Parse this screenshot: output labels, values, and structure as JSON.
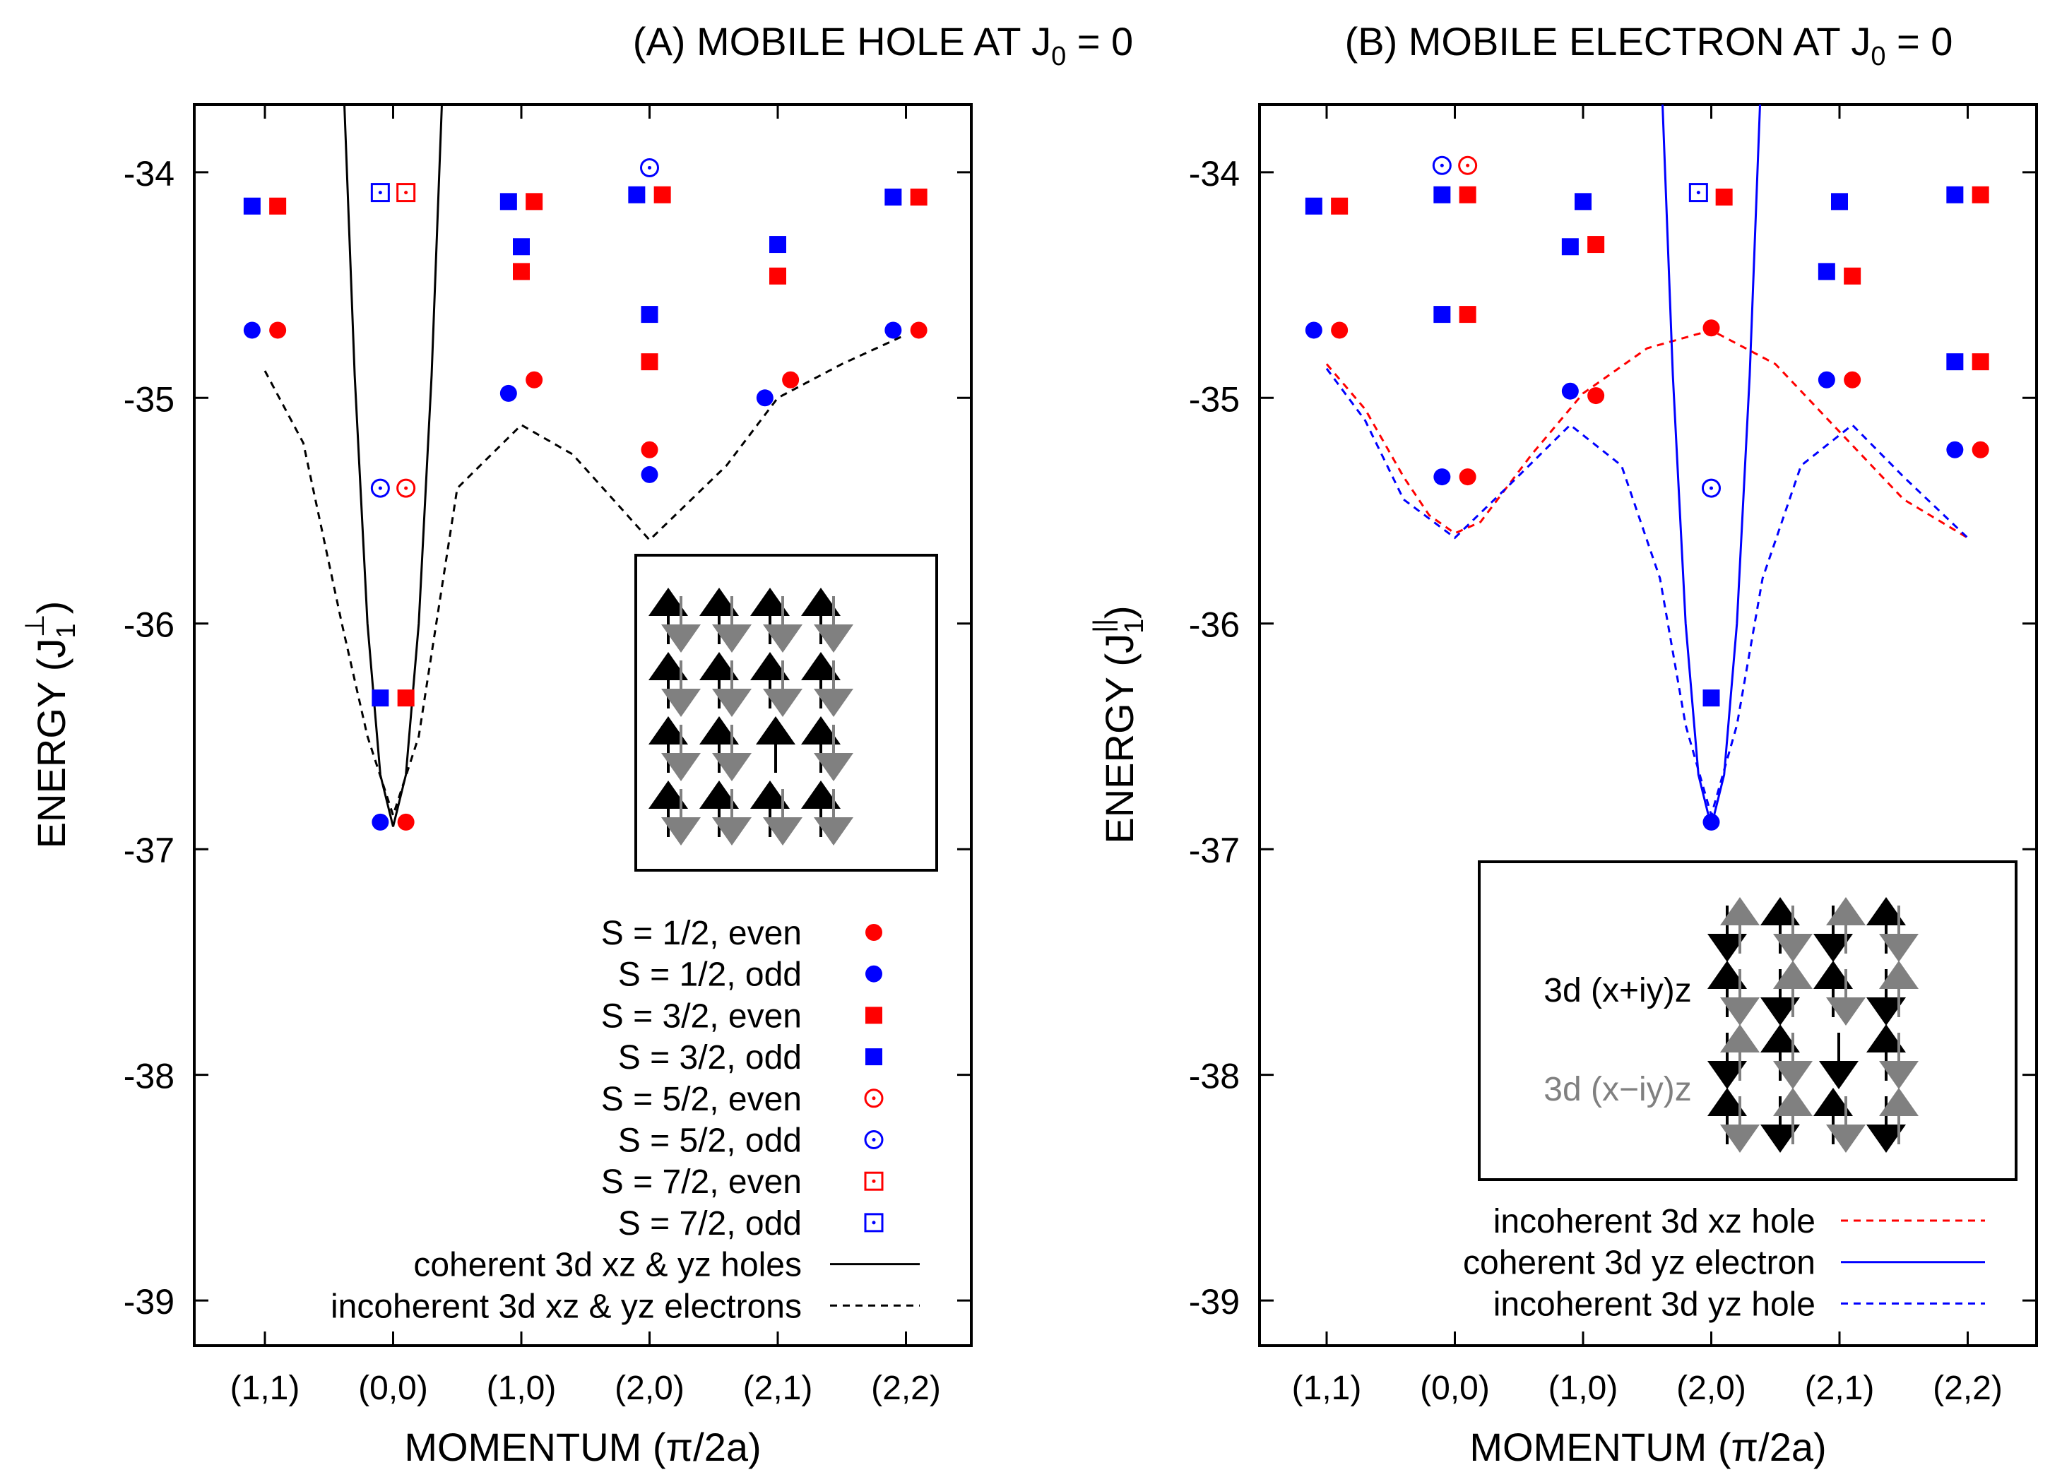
{
  "colors": {
    "red": "#ff0000",
    "blue": "#0000ff",
    "black": "#000000",
    "gray": "#808080"
  },
  "chart_data": [
    {
      "type": "scatter",
      "title": "(A) MOBILE HOLE AT J",
      "title_sub": "0",
      "title_tail": " = 0",
      "ylabel_main": "ENERGY (J",
      "ylabel_sub": "1",
      "ylabel_sup": "⊥",
      "ylabel_close": ")",
      "xlabel": "MOMENTUM (π/2a)",
      "categories": [
        "(1,1)",
        "(0,0)",
        "(1,0)",
        "(2,0)",
        "(2,1)",
        "(2,2)"
      ],
      "ylim": [
        -39.2,
        -33.7
      ],
      "yticks": [
        "-34",
        "-35",
        "-36",
        "-37",
        "-38",
        "-39"
      ],
      "series": [
        {
          "name": "S = 1/2, even",
          "marker": "circle",
          "color": "red",
          "points": [
            [
              0.1,
              -34.7
            ],
            [
              1.1,
              -36.88
            ],
            [
              2.1,
              -34.92
            ],
            [
              3.0,
              -35.23
            ],
            [
              4.1,
              -34.92
            ],
            [
              5.1,
              -34.7
            ]
          ]
        },
        {
          "name": "S = 1/2, odd",
          "marker": "circle",
          "color": "blue",
          "points": [
            [
              -0.1,
              -34.7
            ],
            [
              0.9,
              -36.88
            ],
            [
              1.9,
              -34.98
            ],
            [
              3.0,
              -35.34
            ],
            [
              3.9,
              -35.0
            ],
            [
              4.9,
              -34.7
            ]
          ]
        },
        {
          "name": "S = 3/2, even",
          "marker": "square",
          "color": "red",
          "points": [
            [
              0.1,
              -34.15
            ],
            [
              1.1,
              -36.33
            ],
            [
              2.1,
              -34.13
            ],
            [
              2.0,
              -34.44
            ],
            [
              3.1,
              -34.1
            ],
            [
              3.0,
              -34.84
            ],
            [
              4.0,
              -34.46
            ],
            [
              5.1,
              -34.11
            ]
          ]
        },
        {
          "name": "S = 3/2, odd",
          "marker": "square",
          "color": "blue",
          "points": [
            [
              -0.1,
              -34.15
            ],
            [
              0.9,
              -36.33
            ],
            [
              1.9,
              -34.13
            ],
            [
              2.0,
              -34.33
            ],
            [
              2.9,
              -34.1
            ],
            [
              3.0,
              -34.63
            ],
            [
              4.0,
              -34.32
            ],
            [
              4.9,
              -34.11
            ]
          ]
        },
        {
          "name": "S = 5/2, even",
          "marker": "circle-dot",
          "color": "red",
          "points": [
            [
              1.1,
              -35.4
            ]
          ]
        },
        {
          "name": "S = 5/2, odd",
          "marker": "circle-dot",
          "color": "blue",
          "points": [
            [
              0.9,
              -35.4
            ],
            [
              3.0,
              -33.98
            ]
          ]
        },
        {
          "name": "S = 7/2, even",
          "marker": "square-dot",
          "color": "red",
          "points": [
            [
              1.1,
              -34.09
            ]
          ]
        },
        {
          "name": "S = 7/2, odd",
          "marker": "square-dot",
          "color": "blue",
          "points": [
            [
              0.9,
              -34.09
            ]
          ]
        }
      ],
      "curves": [
        {
          "name": "coherent 3d xz & yz holes",
          "style": "solid",
          "color": "black",
          "x": [
            0.62,
            0.7,
            0.8,
            0.9,
            1.0,
            1.1,
            1.2,
            1.3,
            1.38
          ],
          "y": [
            -33.7,
            -34.9,
            -36.0,
            -36.67,
            -36.9,
            -36.67,
            -36.0,
            -34.9,
            -33.7
          ]
        },
        {
          "name": "incoherent 3d xz & yz electrons",
          "style": "dashed",
          "color": "black",
          "x": [
            0,
            0.3,
            0.6,
            0.8,
            1.0,
            1.2,
            1.5,
            2.0,
            2.4,
            3.0,
            3.6,
            4.0,
            4.5,
            5.0
          ],
          "y": [
            -34.88,
            -35.2,
            -36.0,
            -36.5,
            -36.85,
            -36.5,
            -35.4,
            -35.12,
            -35.25,
            -35.63,
            -35.3,
            -35.0,
            -34.85,
            -34.72
          ]
        }
      ],
      "legend": [
        {
          "label": "S = 1/2, even",
          "marker": "circle",
          "color": "red"
        },
        {
          "label": "S = 1/2, odd",
          "marker": "circle",
          "color": "blue"
        },
        {
          "label": "S = 3/2, even",
          "marker": "square",
          "color": "red"
        },
        {
          "label": "S = 3/2, odd",
          "marker": "square",
          "color": "blue"
        },
        {
          "label": "S = 5/2, even",
          "marker": "circle-dot",
          "color": "red"
        },
        {
          "label": "S = 5/2, odd",
          "marker": "circle-dot",
          "color": "blue"
        },
        {
          "label": "S = 7/2, even",
          "marker": "square-dot",
          "color": "red"
        },
        {
          "label": "S = 7/2, odd",
          "marker": "square-dot",
          "color": "blue"
        },
        {
          "label": "coherent 3d xz & yz holes",
          "marker": "solid",
          "color": "black"
        },
        {
          "label": "incoherent 3d xz & yz electrons",
          "marker": "dashed",
          "color": "black"
        }
      ],
      "inset": {
        "grid": [
          [
            "ud",
            "ud",
            "ud",
            "ud"
          ],
          [
            "ud",
            "ud",
            "ud",
            "ud"
          ],
          [
            "ud",
            "ud",
            "u",
            "ud"
          ],
          [
            "ud",
            "ud",
            "ud",
            "ud"
          ]
        ]
      }
    },
    {
      "type": "scatter",
      "title": "(B) MOBILE ELECTRON AT J",
      "title_sub": "0",
      "title_tail": " = 0",
      "ylabel_main": "ENERGY (J",
      "ylabel_sub": "1",
      "ylabel_sup": "||",
      "ylabel_close": ")",
      "xlabel": "MOMENTUM (π/2a)",
      "categories": [
        "(1,1)",
        "(0,0)",
        "(1,0)",
        "(2,0)",
        "(2,1)",
        "(2,2)"
      ],
      "ylim": [
        -39.2,
        -33.7
      ],
      "yticks": [
        "-34",
        "-35",
        "-36",
        "-37",
        "-38",
        "-39"
      ],
      "series": [
        {
          "name": "S = 1/2, even",
          "marker": "circle",
          "color": "red",
          "points": [
            [
              0.1,
              -34.7
            ],
            [
              1.1,
              -35.35
            ],
            [
              2.1,
              -34.99
            ],
            [
              3.0,
              -34.69
            ],
            [
              4.1,
              -34.92
            ],
            [
              5.1,
              -35.23
            ]
          ]
        },
        {
          "name": "S = 1/2, odd",
          "marker": "circle",
          "color": "blue",
          "points": [
            [
              -0.1,
              -34.7
            ],
            [
              0.9,
              -35.35
            ],
            [
              1.9,
              -34.97
            ],
            [
              3.0,
              -36.88
            ],
            [
              3.9,
              -34.92
            ],
            [
              4.9,
              -35.23
            ]
          ]
        },
        {
          "name": "S = 3/2, even",
          "marker": "square",
          "color": "red",
          "points": [
            [
              0.1,
              -34.15
            ],
            [
              1.1,
              -34.1
            ],
            [
              1.1,
              -34.63
            ],
            [
              2.1,
              -34.32
            ],
            [
              3.1,
              -34.11
            ],
            [
              4.1,
              -34.46
            ],
            [
              5.1,
              -34.1
            ],
            [
              5.1,
              -34.84
            ]
          ]
        },
        {
          "name": "S = 3/2, odd",
          "marker": "square",
          "color": "blue",
          "points": [
            [
              -0.1,
              -34.15
            ],
            [
              0.9,
              -34.1
            ],
            [
              0.9,
              -34.63
            ],
            [
              2.0,
              -34.13
            ],
            [
              1.9,
              -34.33
            ],
            [
              3.0,
              -36.33
            ],
            [
              4.0,
              -34.13
            ],
            [
              3.9,
              -34.44
            ],
            [
              4.9,
              -34.1
            ],
            [
              4.9,
              -34.84
            ]
          ]
        },
        {
          "name": "S = 5/2, even",
          "marker": "circle-dot",
          "color": "red",
          "points": [
            [
              1.1,
              -33.97
            ]
          ]
        },
        {
          "name": "S = 5/2, odd",
          "marker": "circle-dot",
          "color": "blue",
          "points": [
            [
              0.9,
              -33.97
            ],
            [
              3.0,
              -35.4
            ]
          ]
        },
        {
          "name": "S = 7/2, odd",
          "marker": "square-dot",
          "color": "blue",
          "points": [
            [
              2.9,
              -34.09
            ]
          ]
        }
      ],
      "curves": [
        {
          "name": "incoherent 3d xz hole",
          "style": "dashed",
          "color": "red",
          "x": [
            0,
            0.3,
            0.6,
            0.8,
            1.0,
            1.2,
            1.6,
            2.0,
            2.5,
            3.0,
            3.5,
            4.0,
            4.5,
            5.0
          ],
          "y": [
            -34.85,
            -35.05,
            -35.35,
            -35.52,
            -35.6,
            -35.55,
            -35.25,
            -34.98,
            -34.78,
            -34.7,
            -34.85,
            -35.15,
            -35.45,
            -35.62
          ]
        },
        {
          "name": "coherent 3d yz electron",
          "style": "solid",
          "color": "blue",
          "x": [
            2.62,
            2.7,
            2.8,
            2.9,
            3.0,
            3.1,
            3.2,
            3.3,
            3.38
          ],
          "y": [
            -33.7,
            -34.9,
            -36.0,
            -36.67,
            -36.9,
            -36.67,
            -36.0,
            -34.9,
            -33.7
          ]
        },
        {
          "name": "incoherent 3d yz hole",
          "style": "dashed",
          "color": "blue",
          "x": [
            0,
            0.3,
            0.6,
            1.0,
            1.4,
            1.9,
            2.3,
            2.6,
            2.8,
            3.0,
            3.2,
            3.4,
            3.7,
            4.1,
            4.5,
            5.0
          ],
          "y": [
            -34.87,
            -35.1,
            -35.45,
            -35.62,
            -35.4,
            -35.12,
            -35.3,
            -35.8,
            -36.45,
            -36.85,
            -36.45,
            -35.8,
            -35.3,
            -35.12,
            -35.35,
            -35.62
          ]
        }
      ],
      "legend": [
        {
          "label": "incoherent 3d xz hole",
          "marker": "dashed",
          "color": "red"
        },
        {
          "label": "coherent 3d yz electron",
          "marker": "solid",
          "color": "blue"
        },
        {
          "label": "incoherent 3d yz hole",
          "marker": "dashed",
          "color": "blue"
        }
      ],
      "inset": {
        "label_black": "3d (x+iy)z",
        "label_gray": "3d (x−iy)z",
        "grid": [
          [
            "du",
            "ud",
            "du",
            "ud"
          ],
          [
            "ud",
            "du",
            "ud",
            "du"
          ],
          [
            "du",
            "ud",
            "d",
            "ud"
          ],
          [
            "ud",
            "du",
            "ud",
            "du"
          ]
        ]
      }
    }
  ]
}
